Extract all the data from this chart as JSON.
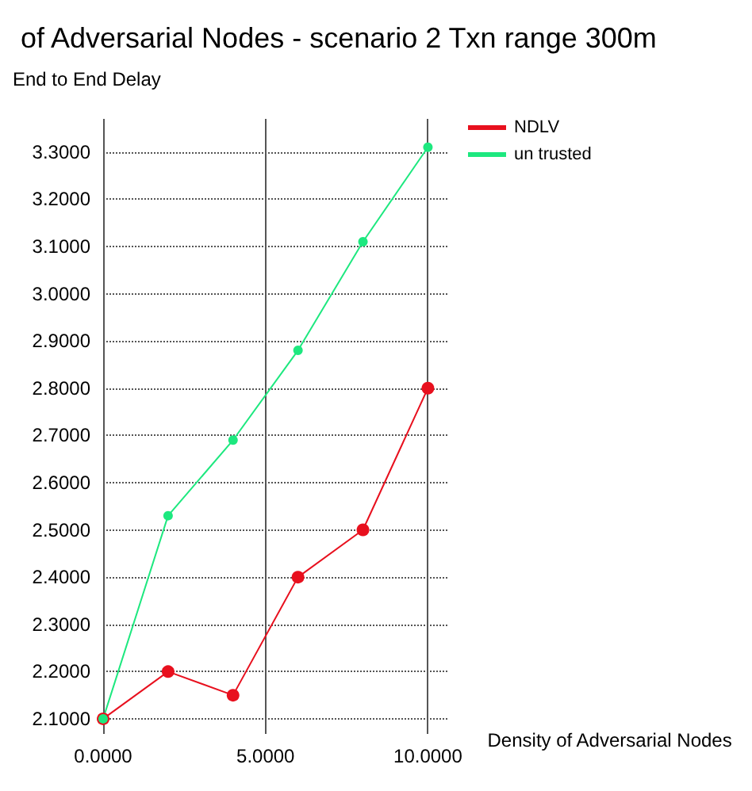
{
  "chart_data": {
    "type": "line",
    "title": "of Adversarial Nodes - scenario 2 Txn range 300m",
    "xlabel": "Density of Adversarial Nodes",
    "ylabel": "End to End Delay",
    "x": [
      0,
      2,
      4,
      6,
      8,
      10
    ],
    "series": [
      {
        "name": "NDLV",
        "color": "#e8101e",
        "values": [
          2.1,
          2.2,
          2.15,
          2.4,
          2.5,
          2.8
        ]
      },
      {
        "name": "un trusted",
        "color": "#1de87f",
        "values": [
          2.1,
          2.53,
          2.69,
          2.88,
          3.11,
          3.31
        ]
      }
    ],
    "xlim": [
      0,
      10.6
    ],
    "ylim": [
      2.068,
      3.37
    ],
    "xticks": [
      {
        "value": 0,
        "label": "0.0000"
      },
      {
        "value": 5,
        "label": "5.0000"
      },
      {
        "value": 10,
        "label": "10.0000"
      }
    ],
    "yticks": [
      {
        "value": 2.1,
        "label": "2.1000"
      },
      {
        "value": 2.2,
        "label": "2.2000"
      },
      {
        "value": 2.3,
        "label": "2.3000"
      },
      {
        "value": 2.4,
        "label": "2.4000"
      },
      {
        "value": 2.5,
        "label": "2.5000"
      },
      {
        "value": 2.6,
        "label": "2.6000"
      },
      {
        "value": 2.7,
        "label": "2.7000"
      },
      {
        "value": 2.8,
        "label": "2.8000"
      },
      {
        "value": 2.9,
        "label": "2.9000"
      },
      {
        "value": 3.0,
        "label": "3.0000"
      },
      {
        "value": 3.1,
        "label": "3.1000"
      },
      {
        "value": 3.2,
        "label": "3.2000"
      },
      {
        "value": 3.3,
        "label": "3.3000"
      }
    ],
    "grid": true,
    "legend": "top right",
    "marker": "circle",
    "line_style": "solid"
  }
}
